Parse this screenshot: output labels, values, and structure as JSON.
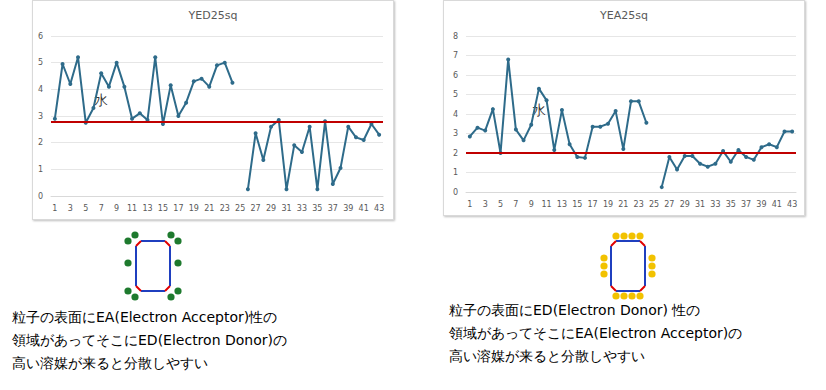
{
  "chart_data": [
    {
      "type": "line",
      "title": "YED25sq",
      "categories": [
        1,
        null,
        3,
        null,
        5,
        null,
        7,
        null,
        9,
        null,
        11,
        null,
        13,
        null,
        15,
        null,
        17,
        null,
        19,
        null,
        21,
        null,
        23,
        null,
        25,
        null,
        27,
        null,
        29,
        null,
        31,
        null,
        33,
        null,
        35,
        null,
        37,
        null,
        39,
        null,
        41,
        null,
        43
      ],
      "values": [
        2.9,
        4.95,
        4.2,
        5.2,
        2.75,
        3.3,
        4.6,
        4.1,
        5.0,
        4.1,
        2.9,
        3.1,
        2.85,
        5.2,
        2.7,
        4.15,
        3.0,
        3.5,
        4.3,
        4.4,
        4.1,
        4.9,
        5.0,
        4.25,
        null,
        0.25,
        2.35,
        1.35,
        2.6,
        2.85,
        0.25,
        1.9,
        1.65,
        2.6,
        0.25,
        2.8,
        0.45,
        1.05,
        2.6,
        2.2,
        2.1,
        2.7,
        2.3
      ],
      "color": "#2e6b8a",
      "marker": "circle",
      "ylim": [
        0,
        6
      ],
      "yticks": [
        0,
        1,
        2,
        3,
        4,
        5,
        6
      ],
      "grid": true,
      "threshold": {
        "value": 2.8,
        "color": "#c00000"
      },
      "annotations": [
        {
          "text": "水",
          "x": 7,
          "y": 3.6
        }
      ]
    },
    {
      "type": "line",
      "title": "YEA25sq",
      "categories": [
        1,
        null,
        3,
        null,
        5,
        null,
        7,
        null,
        9,
        null,
        11,
        null,
        13,
        null,
        15,
        null,
        17,
        null,
        19,
        null,
        21,
        null,
        23,
        null,
        25,
        null,
        27,
        null,
        29,
        null,
        31,
        null,
        33,
        null,
        35,
        null,
        37,
        null,
        39,
        null,
        41,
        null,
        43
      ],
      "values": [
        2.85,
        3.3,
        3.15,
        4.25,
        2.0,
        6.8,
        3.2,
        2.65,
        3.45,
        5.3,
        4.7,
        2.15,
        4.2,
        2.45,
        1.8,
        1.75,
        3.35,
        3.35,
        3.5,
        4.15,
        2.2,
        4.65,
        4.65,
        3.55,
        null,
        0.25,
        1.8,
        1.15,
        1.85,
        1.85,
        1.45,
        1.3,
        1.45,
        2.1,
        1.55,
        2.15,
        1.8,
        1.65,
        2.3,
        2.45,
        2.3,
        3.1,
        3.1
      ],
      "color": "#2e6b8a",
      "marker": "circle",
      "ylim": [
        0,
        8
      ],
      "yticks": [
        0,
        1,
        2,
        3,
        4,
        5,
        6,
        7,
        8
      ],
      "grid": true,
      "threshold": {
        "value": 2.0,
        "color": "#c00000"
      },
      "annotations": [
        {
          "text": "水",
          "x": 10,
          "y": 4.2
        }
      ]
    }
  ],
  "captions": [
    [
      "粒子の表面にEA(Electron Acceptor)性の",
      "領域があってそこにED(Electron Donor)の",
      "高い溶媒が来ると分散しやすい"
    ],
    [
      "粒子の表面にED(Electron Donor) 性の",
      "領域があってそこにEA(Electron Acceptor)の",
      "高い溶媒が来ると分散しやすい"
    ]
  ]
}
